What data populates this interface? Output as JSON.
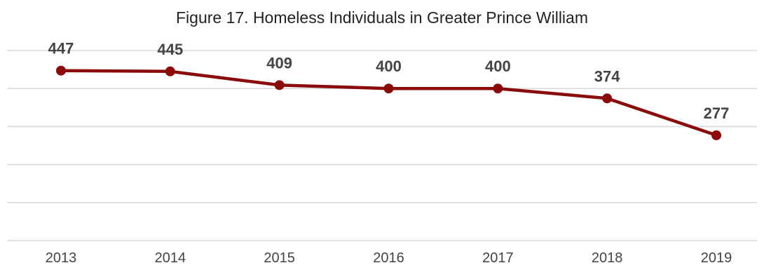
{
  "title": "Figure 17. Homeless Individuals in Greater Prince William",
  "chart_data": {
    "type": "line",
    "title": "Figure 17. Homeless Individuals in Greater Prince William",
    "xlabel": "",
    "ylabel": "",
    "categories": [
      "2013",
      "2014",
      "2015",
      "2016",
      "2017",
      "2018",
      "2019"
    ],
    "series": [
      {
        "values": [
          447,
          445,
          409,
          400,
          400,
          374,
          277
        ],
        "color": "#8b0a0a"
      }
    ],
    "data_labels": [
      "447",
      "445",
      "409",
      "400",
      "400",
      "374",
      "277"
    ],
    "ylim": [
      0,
      500
    ],
    "y_gridlines": [
      0,
      100,
      200,
      300,
      400,
      500
    ],
    "grid": true,
    "y_tick_labels_shown": false,
    "legend": "none"
  }
}
